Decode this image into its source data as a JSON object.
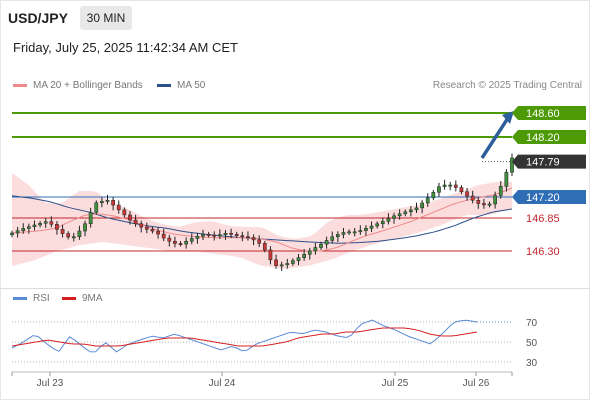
{
  "header": {
    "pair": "USD/JPY",
    "timeframe": "30 MIN",
    "timestamp": "Friday, July 25, 2025 11:42:34 AM CET"
  },
  "legend": {
    "ma20": "MA 20 + Bollinger Bands",
    "ma50": "MA 50",
    "credit": "Research © 2025 Trading Central",
    "rsi": "RSI",
    "rsi_ma": "9MA"
  },
  "colors": {
    "resistance": "#4d9a06",
    "pivot": "#2f6db5",
    "support": "#c0282e",
    "bollinger": "#fbd5d5",
    "ma20": "#f08a8a",
    "ma50": "#2c4f8a",
    "rsi": "#5b8bd6",
    "rsi_ma": "#d62020",
    "current": "#333333",
    "arrow": "#2f5f9a"
  },
  "chart_data": [
    {
      "type": "candlestick",
      "title": "USD/JPY 30 MIN",
      "ylim": [
        145.85,
        148.9
      ],
      "x_ticks": [
        "Jul 23",
        "Jul 24",
        "Jul 25",
        "Jul 26"
      ],
      "levels": [
        {
          "value": 148.6,
          "label": "148.60",
          "kind": "resistance"
        },
        {
          "value": 148.2,
          "label": "148.20",
          "kind": "resistance"
        },
        {
          "value": 147.79,
          "label": "147.79",
          "kind": "current"
        },
        {
          "value": 147.2,
          "label": "147.20",
          "kind": "pivot"
        },
        {
          "value": 146.85,
          "label": "146.85",
          "kind": "support"
        },
        {
          "value": 146.3,
          "label": "146.30",
          "kind": "support"
        }
      ],
      "price_anchors": [
        146.6,
        146.68,
        146.74,
        146.8,
        146.62,
        146.5,
        146.7,
        147.1,
        147.15,
        146.98,
        146.8,
        146.68,
        146.62,
        146.48,
        146.4,
        146.5,
        146.58,
        146.55,
        146.6,
        146.55,
        146.52,
        146.4,
        146.05,
        146.08,
        146.18,
        146.3,
        146.42,
        146.55,
        146.62,
        146.62,
        146.7,
        146.78,
        146.88,
        146.95,
        147.02,
        147.2,
        147.4,
        147.4,
        147.25,
        147.1,
        147.05,
        147.35,
        147.85
      ],
      "ma20_anchors": [
        146.6,
        146.62,
        146.64,
        146.68,
        146.8,
        146.9,
        146.92,
        146.88,
        146.82,
        146.72,
        146.64,
        146.58,
        146.55,
        146.53,
        146.52,
        146.52,
        146.52,
        146.5,
        146.45,
        146.35,
        146.3,
        146.3,
        146.35,
        146.45,
        146.55,
        146.62,
        146.7,
        146.78,
        146.88,
        146.98,
        147.08,
        147.15,
        147.2,
        147.25,
        147.35
      ],
      "bb_upper_anchors": [
        147.6,
        147.4,
        147.1,
        147.1,
        147.3,
        147.3,
        147.1,
        147.0,
        146.85,
        146.75,
        146.7,
        146.78,
        146.8,
        146.72,
        146.7,
        146.7,
        146.55,
        146.5,
        146.55,
        146.8,
        146.9,
        146.9,
        146.95,
        147.0,
        147.05,
        147.1,
        147.2,
        147.3,
        147.4,
        147.45,
        147.45
      ],
      "bb_lower_anchors": [
        146.05,
        146.15,
        146.3,
        146.4,
        146.45,
        146.4,
        146.35,
        146.3,
        146.3,
        146.25,
        146.2,
        146.05,
        146.0,
        146.05,
        146.15,
        146.3,
        146.42,
        146.52,
        146.62,
        146.75,
        146.9,
        146.9,
        147.0
      ],
      "ma50_anchors": [
        147.22,
        147.18,
        147.12,
        147.02,
        146.95,
        146.85,
        146.78,
        146.72,
        146.68,
        146.62,
        146.58,
        146.55,
        146.52,
        146.5,
        146.48,
        146.46,
        146.44,
        146.43,
        146.44,
        146.46,
        146.5,
        146.55,
        146.62,
        146.72,
        146.85,
        146.95,
        147.0
      ],
      "forecast_target": 148.6
    },
    {
      "type": "line",
      "title": "RSI",
      "ylim": [
        22,
        78
      ],
      "y_ticks": [
        70,
        50,
        30
      ],
      "series": [
        {
          "name": "RSI",
          "anchors": [
            44,
            50,
            58,
            48,
            40,
            56,
            46,
            38,
            50,
            40,
            48,
            52,
            56,
            54,
            58,
            54,
            50,
            46,
            42,
            46,
            40,
            48,
            52,
            56,
            60,
            58,
            62,
            60,
            56,
            54,
            68,
            72,
            66,
            62,
            56,
            52,
            48,
            58,
            70,
            72,
            70
          ]
        },
        {
          "name": "9MA",
          "anchors": [
            46,
            48,
            50,
            52,
            50,
            48,
            48,
            46,
            46,
            46,
            48,
            50,
            52,
            54,
            54,
            54,
            52,
            50,
            48,
            46,
            46,
            46,
            48,
            50,
            54,
            56,
            58,
            58,
            60,
            60,
            62,
            64,
            64,
            64,
            62,
            58,
            56,
            56,
            58,
            60
          ]
        }
      ]
    }
  ]
}
